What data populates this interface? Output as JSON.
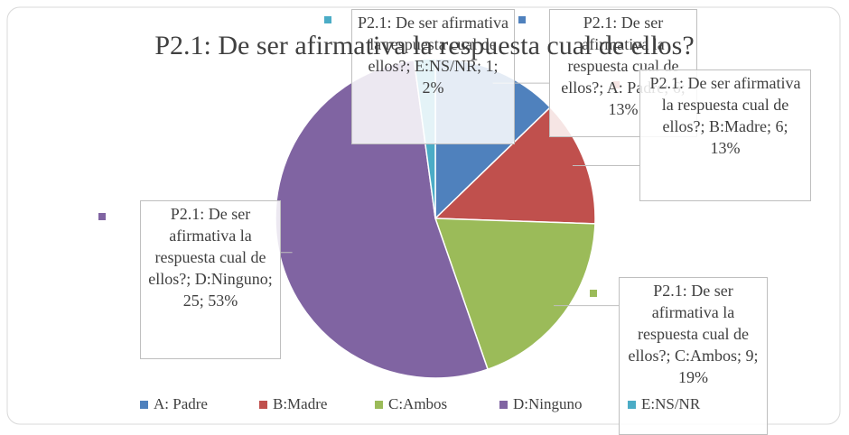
{
  "chart_data": {
    "type": "pie",
    "title": "P2.1: De ser afirmativa la respuesta cual de ellos?",
    "categories": [
      "A: Padre",
      "B:Madre",
      "C:Ambos",
      "D:Ninguno",
      "E:NS/NR"
    ],
    "series": [
      {
        "name": "P2.1: De ser afirmativa la respuesta cual de ellos?",
        "colors": [
          "#4f81bd",
          "#c0504d",
          "#9bbb59",
          "#8064a2",
          "#4bacc6"
        ],
        "values": [
          6,
          6,
          9,
          25,
          1
        ],
        "value_labels": [
          "P2.1: De ser afirmativa la respuesta cual de ellos?; A: Padre; 6; 13%",
          "P2.1: De ser afirmativa la respuesta cual de ellos?; B:Madre; 6; 13%",
          "P2.1: De ser afirmativa la respuesta cual de ellos?; C:Ambos; 9; 19%",
          "P2.1: De ser afirmativa la respuesta cual de ellos?; D:Ninguno; 25; 53%",
          "P2.1: De ser afirmativa la respuesta cual de ellos?; E:NS/NR; 1; 2%"
        ]
      }
    ],
    "legend": "bottom"
  }
}
